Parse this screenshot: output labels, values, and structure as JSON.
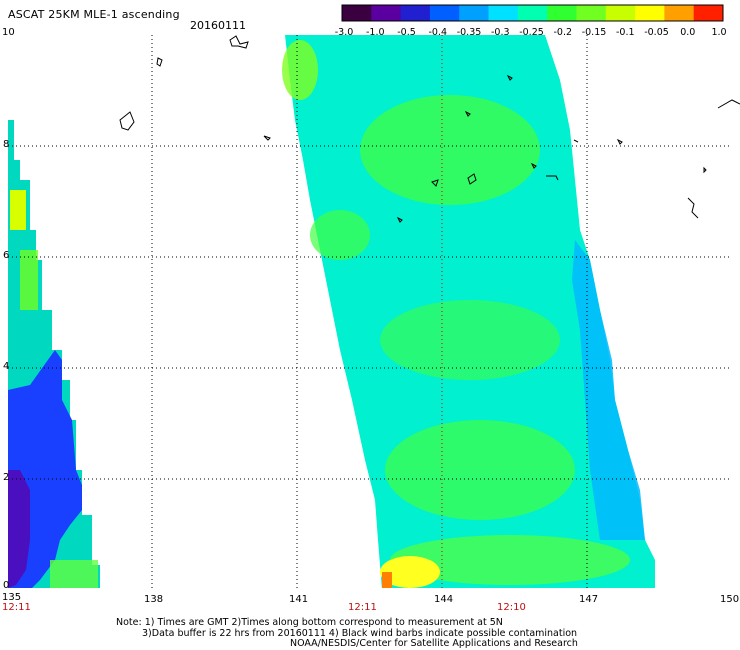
{
  "header": {
    "title": "ASCAT 25KM MLE-1 ascending",
    "date": "20160111"
  },
  "colorbar": {
    "labels": [
      "-3.0",
      "-1.0",
      "-0.5",
      "-0.4",
      "-0.35",
      "-0.3",
      "-0.25",
      "-0.2",
      "-0.15",
      "-0.1",
      "-0.05",
      "0.0",
      "1.0"
    ],
    "colors": [
      "#3a0040",
      "#5a00a0",
      "#2020d0",
      "#0060ff",
      "#00a0ff",
      "#00e0ff",
      "#00ffb0",
      "#30ff30",
      "#70ff20",
      "#c8ff00",
      "#ffff00",
      "#ffa000",
      "#ff2000"
    ]
  },
  "axes": {
    "x_labels": [
      "135",
      "138",
      "141",
      "144",
      "147",
      "150"
    ],
    "y_labels": [
      "10",
      "8",
      "6",
      "4",
      "2",
      "0"
    ]
  },
  "times": [
    "12:11",
    "12:11",
    "12:10"
  ],
  "notes": {
    "line1": "Note: 1) Times are GMT 2)Times along bottom correspond to measurement at 5N",
    "line2": "3)Data buffer is 22 hrs from 20160111 4) Black wind barbs indicate possible contamination",
    "line3": "NOAA/NESDIS/Center for Satellite Applications and Research"
  }
}
